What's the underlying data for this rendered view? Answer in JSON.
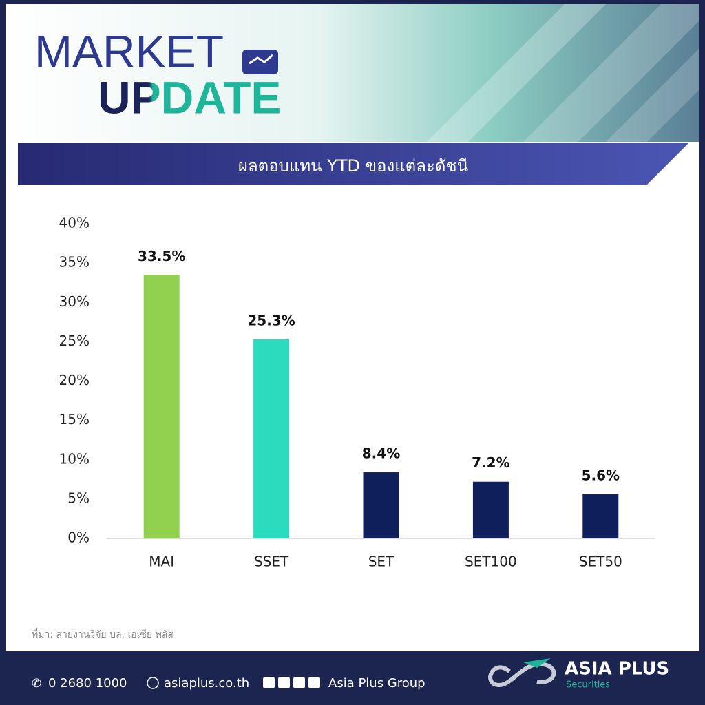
{
  "header": {
    "line1": "MARKET",
    "line2": "UPDATE"
  },
  "chart_data": {
    "type": "bar",
    "title": "ผลตอบแทน YTD ของแต่ละดัชนี",
    "categories": [
      "MAI",
      "SSET",
      "SET",
      "SET100",
      "SET50"
    ],
    "values": [
      33.5,
      25.3,
      8.4,
      7.2,
      5.6
    ],
    "value_labels": [
      "33.5%",
      "25.3%",
      "8.4%",
      "7.2%",
      "5.6%"
    ],
    "colors": [
      "#92d050",
      "#2adbbd",
      "#0f1f5c",
      "#0f1f5c",
      "#0f1f5c"
    ],
    "ylim": [
      0,
      40
    ],
    "yticks": [
      {
        "value": 0,
        "label": "0%"
      },
      {
        "value": 5,
        "label": "5%"
      },
      {
        "value": 10,
        "label": "10%"
      },
      {
        "value": 15,
        "label": "15%"
      },
      {
        "value": 20,
        "label": "20%"
      },
      {
        "value": 25,
        "label": "25%"
      },
      {
        "value": 30,
        "label": "30%"
      },
      {
        "value": 35,
        "label": "35%"
      },
      {
        "value": 40,
        "label": "40%"
      }
    ],
    "source": "ที่มา: สายงานวิจัย บล. เอเซีย พลัส"
  },
  "footer": {
    "phone": "0 2680 1000",
    "website": "asiaplus.co.th",
    "social": "Asia Plus Group",
    "brand": "ASIA PLUS",
    "brand_sub": "Securities"
  }
}
